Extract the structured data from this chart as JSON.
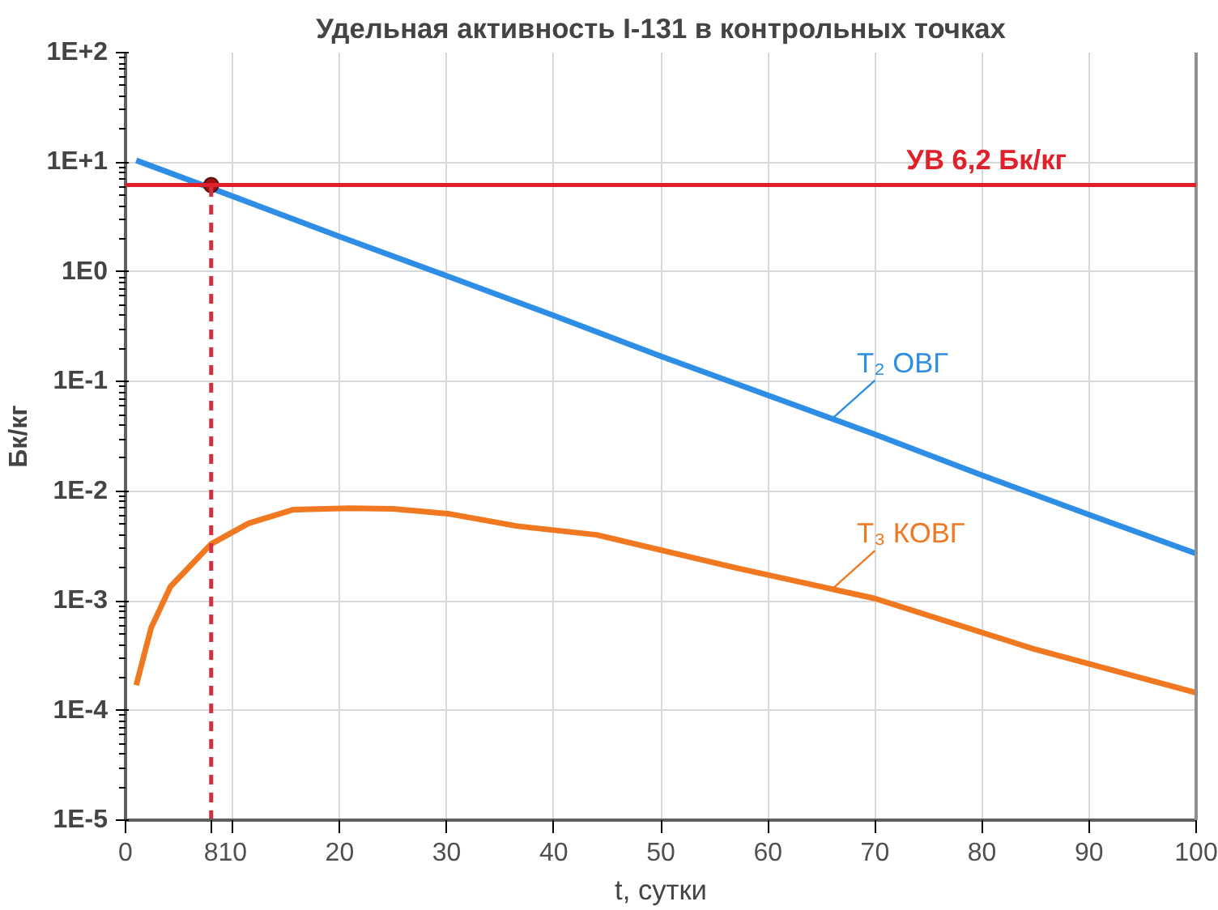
{
  "chart_data": {
    "type": "line",
    "title": "Удельная активность I-131 в контрольных точках",
    "xlabel": "t, сутки",
    "ylabel": "Бк/кг",
    "log": "y",
    "grid": true,
    "legend": false,
    "marker": "none",
    "line_style": "solid",
    "xlim": [
      0,
      100
    ],
    "ylim": [
      1e-05,
      100
    ],
    "xticks": [
      0,
      10,
      20,
      30,
      40,
      50,
      60,
      70,
      80,
      90,
      100
    ],
    "yticks": [
      {
        "value": 100,
        "label": "1E+2"
      },
      {
        "value": 10,
        "label": "1E+1"
      },
      {
        "value": 1,
        "label": "1E0"
      },
      {
        "value": 0.1,
        "label": "1E-1"
      },
      {
        "value": 0.01,
        "label": "1E-2"
      },
      {
        "value": 0.001,
        "label": "1E-3"
      },
      {
        "value": 0.0001,
        "label": "1E-4"
      },
      {
        "value": 1e-05,
        "label": "1E-5"
      }
    ],
    "ref_lines": [
      {
        "axis": "y",
        "value": 6.2,
        "label": "УВ 6,2 Бк/кг",
        "color": "#e0202a",
        "line_style": "solid"
      },
      {
        "axis": "x",
        "value": 8,
        "label": "8",
        "color": "#d03040",
        "line_style": "dashed"
      }
    ],
    "series": [
      {
        "name": "T₂ ОВГ",
        "color": "#2e8ee6",
        "x": [
          1,
          10,
          20,
          30,
          40,
          50,
          60,
          70,
          80,
          90,
          100
        ],
        "values": [
          10.4,
          4.9,
          2.1,
          0.92,
          0.4,
          0.17,
          0.075,
          0.033,
          0.014,
          0.0061,
          0.0027
        ]
      },
      {
        "type": "scatter",
        "marker": "circle",
        "color": "#a01010",
        "x": [
          8
        ],
        "values": [
          6.2
        ]
      },
      {
        "name": "T₃ КОВГ",
        "color": "#f07820",
        "x": [
          1,
          2.4,
          4.2,
          8,
          11.5,
          15.7,
          20.9,
          25,
          30.3,
          36.6,
          44,
          57,
          70,
          85,
          100
        ],
        "values": [
          0.00017,
          0.00057,
          0.00135,
          0.0033,
          0.0051,
          0.0068,
          0.007,
          0.0069,
          0.0062,
          0.0048,
          0.004,
          0.002,
          0.00105,
          0.00036,
          0.000145
        ]
      }
    ]
  }
}
